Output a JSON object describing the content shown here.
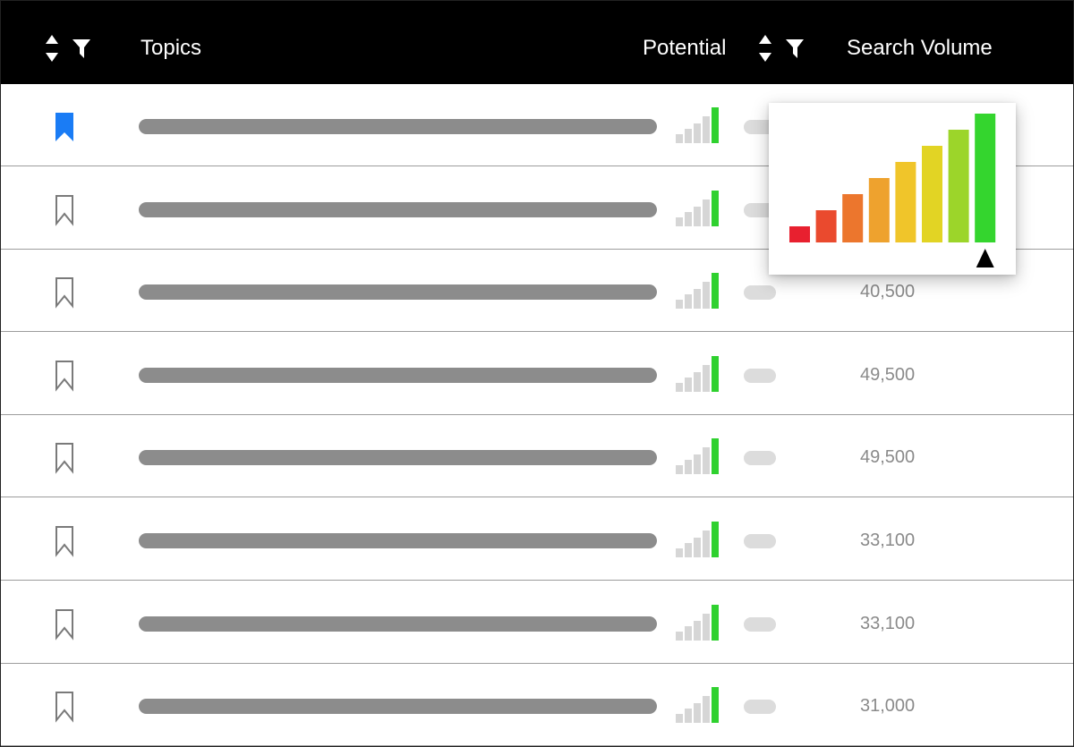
{
  "header": {
    "topics_label": "Topics",
    "potential_label": "Potential",
    "search_volume_label": "Search Volume",
    "icons": [
      "sort-icon",
      "filter-icon"
    ]
  },
  "colors": {
    "bookmark_active": "#1a7cf5",
    "signal_active": "#2fd12f",
    "signal_inactive": "#d6d6d6",
    "popup_scale": [
      "#e8202f",
      "#ea4a2e",
      "#ec762d",
      "#eea22e",
      "#f0c52a",
      "#e2d424",
      "#9cd52a",
      "#34d52e"
    ]
  },
  "rows": [
    {
      "bookmarked": true,
      "potential_level": 5,
      "potential_max": 5,
      "volume": ""
    },
    {
      "bookmarked": false,
      "potential_level": 5,
      "potential_max": 5,
      "volume": ""
    },
    {
      "bookmarked": false,
      "potential_level": 5,
      "potential_max": 5,
      "volume": "40,500"
    },
    {
      "bookmarked": false,
      "potential_level": 5,
      "potential_max": 5,
      "volume": "49,500"
    },
    {
      "bookmarked": false,
      "potential_level": 5,
      "potential_max": 5,
      "volume": "49,500"
    },
    {
      "bookmarked": false,
      "potential_level": 5,
      "potential_max": 5,
      "volume": "33,100"
    },
    {
      "bookmarked": false,
      "potential_level": 5,
      "potential_max": 5,
      "volume": "33,100"
    },
    {
      "bookmarked": false,
      "potential_level": 5,
      "potential_max": 5,
      "volume": "31,000"
    }
  ],
  "potential_popup": {
    "levels": 8,
    "selected_level": 8,
    "pointer_icon": "triangle-up-icon"
  }
}
